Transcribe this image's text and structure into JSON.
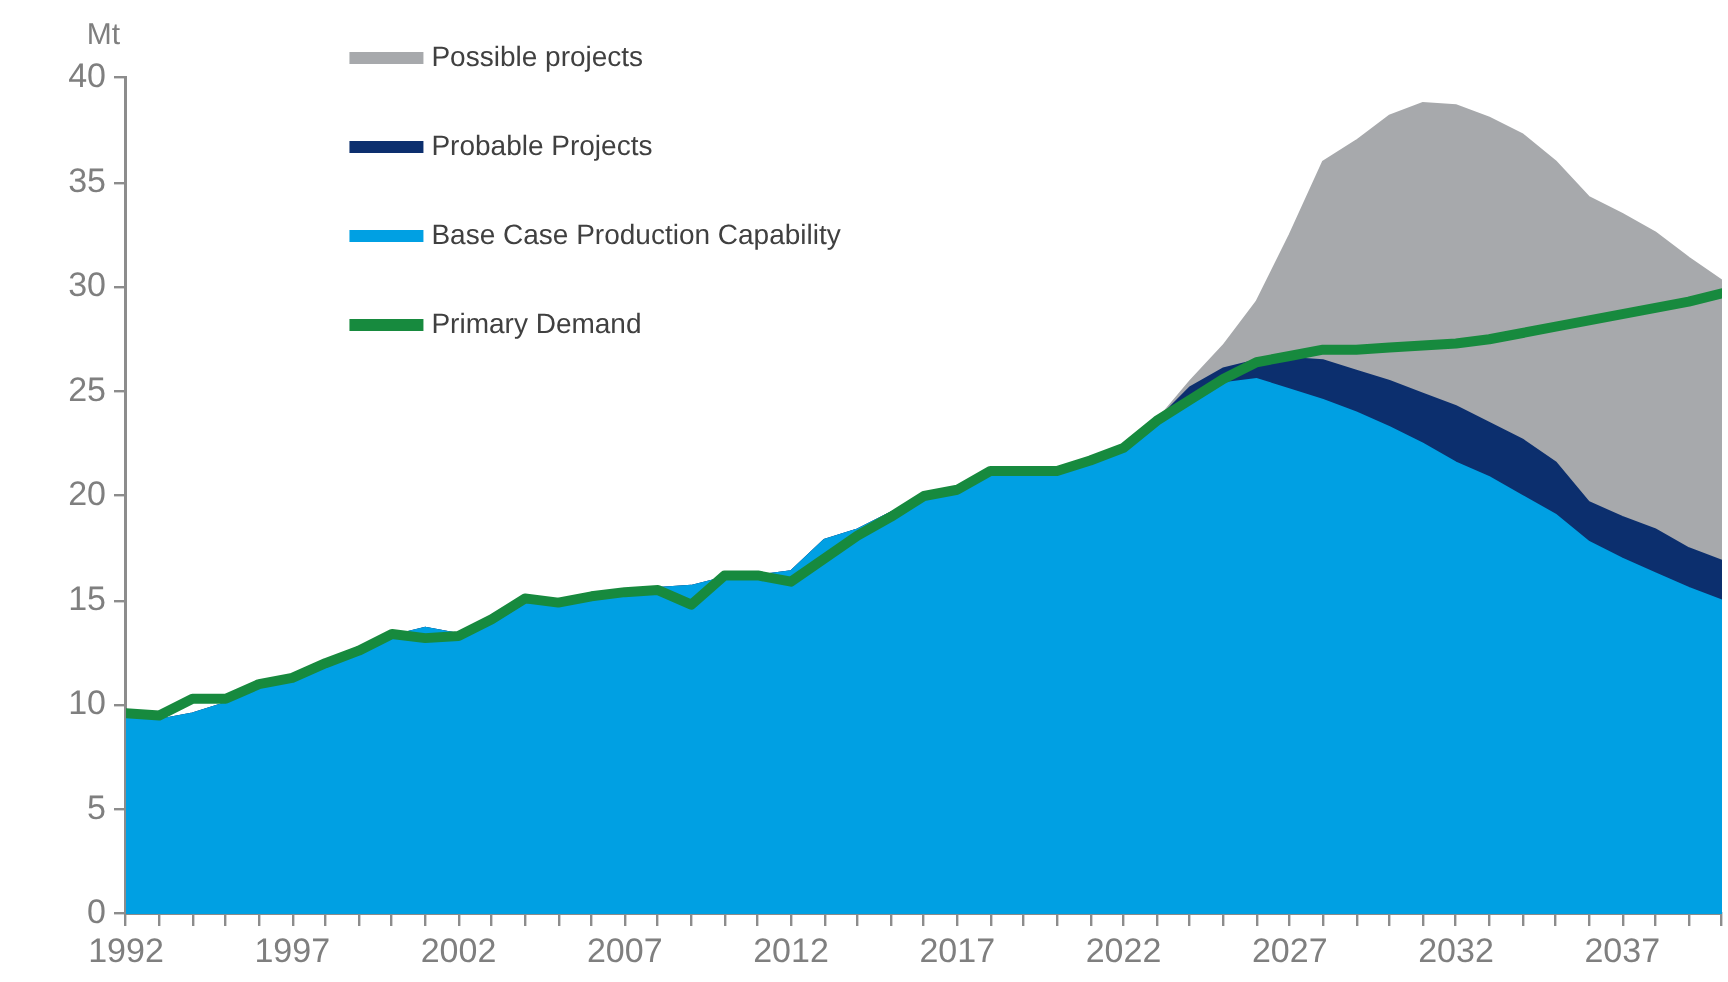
{
  "chart_data": {
    "type": "area",
    "ylabel": "Mt",
    "stacked": true,
    "grid": false,
    "legend": "top left",
    "marker": "none",
    "x": [
      1992,
      1993,
      1994,
      1995,
      1996,
      1997,
      1998,
      1999,
      2000,
      2001,
      2002,
      2003,
      2004,
      2005,
      2006,
      2007,
      2008,
      2009,
      2010,
      2011,
      2012,
      2013,
      2014,
      2015,
      2016,
      2017,
      2018,
      2019,
      2020,
      2021,
      2022,
      2023,
      2024,
      2025,
      2026,
      2027,
      2028,
      2029,
      2030,
      2031,
      2032,
      2033,
      2034,
      2035,
      2036,
      2037,
      2038,
      2039,
      2040
    ],
    "series": [
      {
        "name": "Base Case Production Capability",
        "color": "#00a0e3",
        "values": [
          9.5,
          9.3,
          9.6,
          10.1,
          10.8,
          11.2,
          11.8,
          12.4,
          13.3,
          13.7,
          13.4,
          13.8,
          14.8,
          15.0,
          15.2,
          15.4,
          15.6,
          15.7,
          16.1,
          16.2,
          16.4,
          17.9,
          18.4,
          19.2,
          20.0,
          20.3,
          21.1,
          21.2,
          21.2,
          21.7,
          22.2,
          23.5,
          24.4,
          25.4,
          25.6,
          25.1,
          24.6,
          24.0,
          23.3,
          22.5,
          21.6,
          20.9,
          20.0,
          19.1,
          17.8,
          17.0,
          16.3,
          15.6,
          15.0
        ]
      },
      {
        "name": "Probable Projects",
        "color": "#0c2f6e",
        "values": [
          0,
          0,
          0,
          0,
          0,
          0,
          0,
          0,
          0,
          0,
          0,
          0,
          0,
          0,
          0,
          0,
          0,
          0,
          0,
          0,
          0,
          0,
          0,
          0,
          0,
          0,
          0,
          0,
          0,
          0,
          0,
          0.1,
          0.8,
          0.7,
          0.9,
          1.5,
          1.9,
          2.0,
          2.2,
          2.4,
          2.7,
          2.6,
          2.7,
          2.5,
          1.9,
          2.0,
          2.1,
          1.9,
          1.9
        ]
      },
      {
        "name": "Possible projects",
        "color": "#a7a9ac",
        "values": [
          0,
          0,
          0,
          0,
          0,
          0,
          0,
          0,
          0,
          0,
          0,
          0,
          0,
          0,
          0,
          0,
          0,
          0,
          0,
          0,
          0,
          0,
          0,
          0,
          0,
          0,
          0,
          0,
          0,
          0,
          0,
          0,
          0.3,
          1.1,
          2.8,
          5.9,
          9.5,
          11.0,
          12.7,
          13.9,
          14.4,
          14.6,
          14.6,
          14.4,
          14.6,
          14.5,
          14.2,
          13.9,
          13.4
        ]
      },
      {
        "name": "Primary Demand",
        "type": "line",
        "color": "#178a3e",
        "values": [
          9.6,
          9.5,
          10.3,
          10.3,
          11.0,
          11.3,
          12.0,
          12.6,
          13.4,
          13.2,
          13.3,
          14.1,
          15.1,
          14.9,
          15.2,
          15.4,
          15.5,
          14.8,
          16.2,
          16.2,
          15.9,
          17.0,
          18.1,
          19.0,
          20.0,
          20.3,
          21.2,
          21.2,
          21.2,
          21.7,
          22.3,
          23.6,
          24.6,
          25.6,
          26.4,
          26.7,
          27.0,
          27.0,
          27.1,
          27.2,
          27.3,
          27.5,
          27.8,
          28.1,
          28.4,
          28.7,
          29.0,
          29.3,
          29.7
        ]
      }
    ],
    "xlim": [
      1992,
      2040
    ],
    "xticks": [
      1992,
      {
        "value": 1993,
        "label": null
      },
      {
        "value": 1994,
        "label": null
      },
      {
        "value": 1995,
        "label": null
      },
      {
        "value": 1996,
        "label": null
      },
      1997,
      {
        "value": 1998,
        "label": null
      },
      {
        "value": 1999,
        "label": null
      },
      {
        "value": 2000,
        "label": null
      },
      {
        "value": 2001,
        "label": null
      },
      2002,
      {
        "value": 2003,
        "label": null
      },
      {
        "value": 2004,
        "label": null
      },
      {
        "value": 2005,
        "label": null
      },
      {
        "value": 2006,
        "label": null
      },
      2007,
      {
        "value": 2008,
        "label": null
      },
      {
        "value": 2009,
        "label": null
      },
      {
        "value": 2010,
        "label": null
      },
      {
        "value": 2011,
        "label": null
      },
      2012,
      {
        "value": 2013,
        "label": null
      },
      {
        "value": 2014,
        "label": null
      },
      {
        "value": 2015,
        "label": null
      },
      {
        "value": 2016,
        "label": null
      },
      2017,
      {
        "value": 2018,
        "label": null
      },
      {
        "value": 2019,
        "label": null
      },
      {
        "value": 2020,
        "label": null
      },
      {
        "value": 2021,
        "label": null
      },
      2022,
      {
        "value": 2023,
        "label": null
      },
      {
        "value": 2024,
        "label": null
      },
      {
        "value": 2025,
        "label": null
      },
      {
        "value": 2026,
        "label": null
      },
      2027,
      {
        "value": 2028,
        "label": null
      },
      {
        "value": 2029,
        "label": null
      },
      {
        "value": 2030,
        "label": null
      },
      {
        "value": 2031,
        "label": null
      },
      2032,
      {
        "value": 2033,
        "label": null
      },
      {
        "value": 2034,
        "label": null
      },
      {
        "value": 2035,
        "label": null
      },
      {
        "value": 2036,
        "label": null
      },
      2037,
      {
        "value": 2038,
        "label": null
      },
      {
        "value": 2039,
        "label": null
      },
      {
        "value": 2040,
        "label": null
      }
    ],
    "ylim": [
      0,
      40
    ],
    "yticks": [
      0,
      5,
      10,
      15,
      20,
      25,
      30,
      35,
      40
    ]
  }
}
